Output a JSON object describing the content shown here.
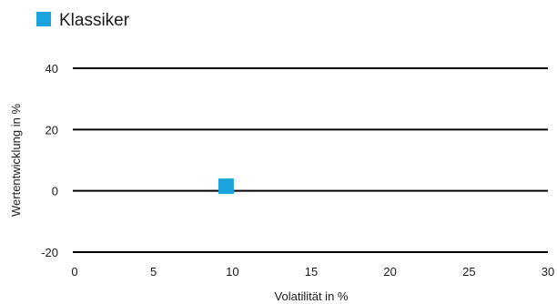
{
  "chart_data": {
    "type": "scatter",
    "title": "",
    "xlabel": "Volatilität in %",
    "ylabel": "Wertentwicklung in %",
    "xlim": [
      0,
      30
    ],
    "ylim": [
      -20,
      40
    ],
    "x_ticks": [
      "0",
      "5",
      "10",
      "15",
      "20",
      "25",
      "30"
    ],
    "y_ticks": [
      "-20",
      "0",
      "20",
      "40"
    ],
    "grid": "horizontal",
    "legend_position": "top-left",
    "series": [
      {
        "name": "Klassiker",
        "color": "#1BA3DD",
        "marker": "square",
        "points": [
          {
            "x": 9.6,
            "y": 1.5
          }
        ]
      }
    ]
  }
}
